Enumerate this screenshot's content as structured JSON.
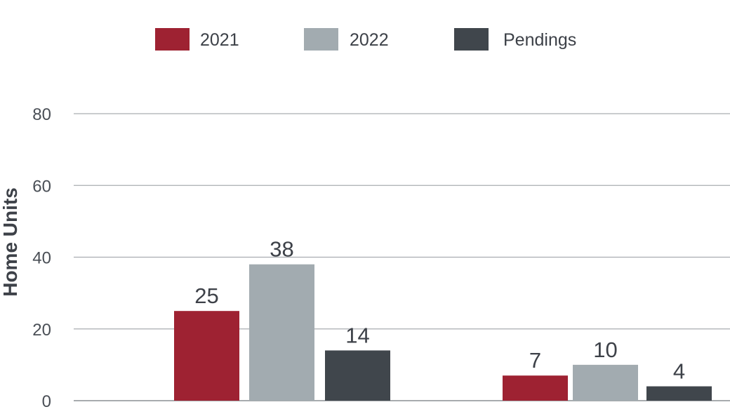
{
  "chart_data": {
    "type": "bar",
    "title": "",
    "xlabel": "",
    "ylabel": "Home Units",
    "ylim": [
      0,
      80
    ],
    "yticks": [
      0,
      20,
      40,
      60,
      80
    ],
    "grid": true,
    "legend_position": "top-center",
    "categories": [
      "",
      ""
    ],
    "series": [
      {
        "name": "2021",
        "color": "#9e2232",
        "values": [
          25,
          7
        ]
      },
      {
        "name": "2022",
        "color": "#a2abb0",
        "values": [
          38,
          10
        ]
      },
      {
        "name": "Pendings",
        "color": "#40464c",
        "values": [
          14,
          4
        ]
      }
    ]
  }
}
